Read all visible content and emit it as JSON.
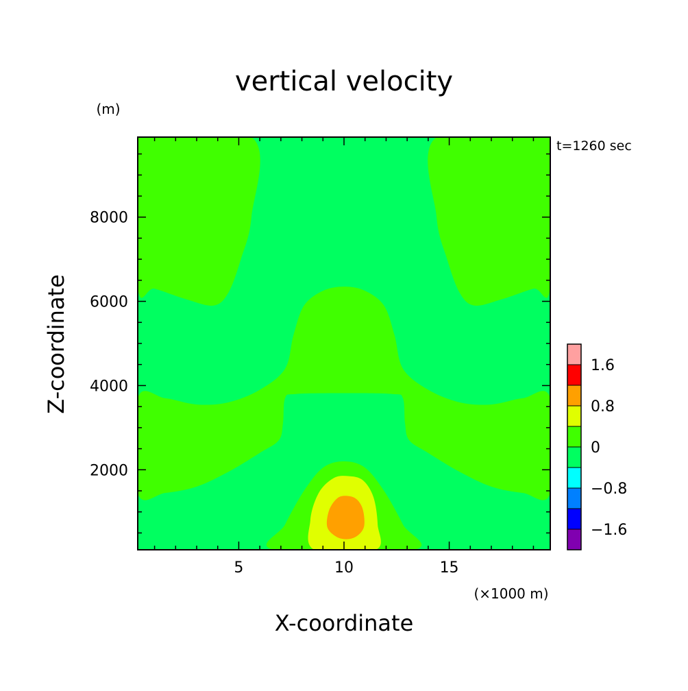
{
  "chart_data": {
    "type": "heatmap",
    "subtype": "filled-contour",
    "title": "vertical velocity",
    "xlabel": "X-coordinate",
    "ylabel": "Z-coordinate",
    "x_unit_label": "(×1000 m)",
    "y_unit_label": "(m)",
    "time_label": "t=1260 sec",
    "xlim": [
      0.2,
      19.8
    ],
    "ylim": [
      100,
      9900
    ],
    "xticks": [
      5,
      10,
      15
    ],
    "xtick_labels": [
      "5",
      "10",
      "15"
    ],
    "yticks": [
      2000,
      4000,
      6000,
      8000
    ],
    "ytick_labels": [
      "2000",
      "4000",
      "6000",
      "8000"
    ],
    "grid": false,
    "colorbar": {
      "levels": [
        -2.0,
        -1.6,
        -1.2,
        -0.8,
        -0.4,
        0.0,
        0.4,
        0.8,
        1.2,
        1.6,
        2.0
      ],
      "colors": [
        "#8000b0",
        "#0000ff",
        "#0080ff",
        "#00ffff",
        "#00ff60",
        "#40ff00",
        "#e0ff00",
        "#ffa000",
        "#ff0000",
        "#ffa0a0"
      ],
      "tick_labels": [
        "−1.6",
        "−0.8",
        "0",
        "0.8",
        "1.6"
      ],
      "tick_values": [
        -1.6,
        -0.8,
        0.0,
        0.8,
        1.6
      ]
    },
    "regions": [
      {
        "name": "background",
        "range": [
          -0.4,
          0.0
        ],
        "color": "#00ff60"
      },
      {
        "name": "upper-left-updraft",
        "range": [
          0.0,
          0.4
        ],
        "color": "#40ff00",
        "boundary": [
          [
            0.2,
            9900
          ],
          [
            5.6,
            9900
          ],
          [
            5.6,
            8000
          ],
          [
            5.1,
            7000
          ],
          [
            4.5,
            6200
          ],
          [
            3.8,
            5900
          ],
          [
            2.5,
            6050
          ],
          [
            1.0,
            6300
          ],
          [
            0.2,
            6350
          ]
        ]
      },
      {
        "name": "upper-right-updraft",
        "range": [
          0.0,
          0.4
        ],
        "color": "#40ff00",
        "boundary": [
          [
            19.8,
            9900
          ],
          [
            14.4,
            9900
          ],
          [
            14.4,
            8000
          ],
          [
            14.9,
            7000
          ],
          [
            15.5,
            6200
          ],
          [
            16.2,
            5900
          ],
          [
            17.5,
            6050
          ],
          [
            19.0,
            6300
          ],
          [
            19.8,
            6350
          ]
        ]
      },
      {
        "name": "middle-band-updraft",
        "range": [
          0.0,
          0.4
        ],
        "color": "#40ff00",
        "boundary": [
          [
            0.2,
            3700
          ],
          [
            1.5,
            3700
          ],
          [
            3.0,
            3550
          ],
          [
            4.5,
            3600
          ],
          [
            6.0,
            3900
          ],
          [
            7.2,
            4400
          ],
          [
            7.6,
            5200
          ],
          [
            8.1,
            5900
          ],
          [
            9.0,
            6250
          ],
          [
            10.0,
            6350
          ],
          [
            11.0,
            6250
          ],
          [
            11.9,
            5900
          ],
          [
            12.4,
            5200
          ],
          [
            12.8,
            4400
          ],
          [
            14.0,
            3900
          ],
          [
            15.5,
            3600
          ],
          [
            17.0,
            3550
          ],
          [
            18.5,
            3700
          ],
          [
            19.8,
            3700
          ],
          [
            19.8,
            1450
          ],
          [
            18.5,
            1450
          ],
          [
            17.0,
            1600
          ],
          [
            15.5,
            1950
          ],
          [
            14.0,
            2400
          ],
          [
            13.1,
            2700
          ],
          [
            12.9,
            3100
          ],
          [
            12.8,
            3700
          ],
          [
            12.3,
            3800
          ],
          [
            10.0,
            3820
          ],
          [
            7.7,
            3800
          ],
          [
            7.2,
            3700
          ],
          [
            7.1,
            3100
          ],
          [
            6.9,
            2700
          ],
          [
            6.0,
            2400
          ],
          [
            4.5,
            1950
          ],
          [
            3.0,
            1600
          ],
          [
            1.5,
            1450
          ],
          [
            0.2,
            1450
          ]
        ]
      },
      {
        "name": "bottom-updraft",
        "range": [
          0.0,
          0.4
        ],
        "color": "#40ff00",
        "boundary": [
          [
            6.7,
            100
          ],
          [
            7.2,
            700
          ],
          [
            8.1,
            1500
          ],
          [
            9.0,
            2050
          ],
          [
            10.0,
            2200
          ],
          [
            11.0,
            2050
          ],
          [
            11.9,
            1500
          ],
          [
            12.8,
            700
          ],
          [
            13.3,
            100
          ]
        ]
      },
      {
        "name": "core-0.4",
        "range": [
          0.4,
          0.8
        ],
        "color": "#e0ff00",
        "boundary": [
          [
            8.6,
            100
          ],
          [
            8.4,
            800
          ],
          [
            8.8,
            1450
          ],
          [
            9.5,
            1800
          ],
          [
            10.2,
            1850
          ],
          [
            10.9,
            1750
          ],
          [
            11.4,
            1350
          ],
          [
            11.6,
            700
          ],
          [
            11.5,
            100
          ]
        ]
      },
      {
        "name": "core-0.8",
        "range": [
          0.8,
          1.2
        ],
        "color": "#ffa000",
        "boundary": [
          [
            9.2,
            650
          ],
          [
            9.3,
            1050
          ],
          [
            9.7,
            1330
          ],
          [
            10.15,
            1380
          ],
          [
            10.6,
            1300
          ],
          [
            10.9,
            1050
          ],
          [
            10.95,
            650
          ],
          [
            10.6,
            420
          ],
          [
            10.1,
            350
          ],
          [
            9.6,
            420
          ]
        ]
      }
    ]
  }
}
